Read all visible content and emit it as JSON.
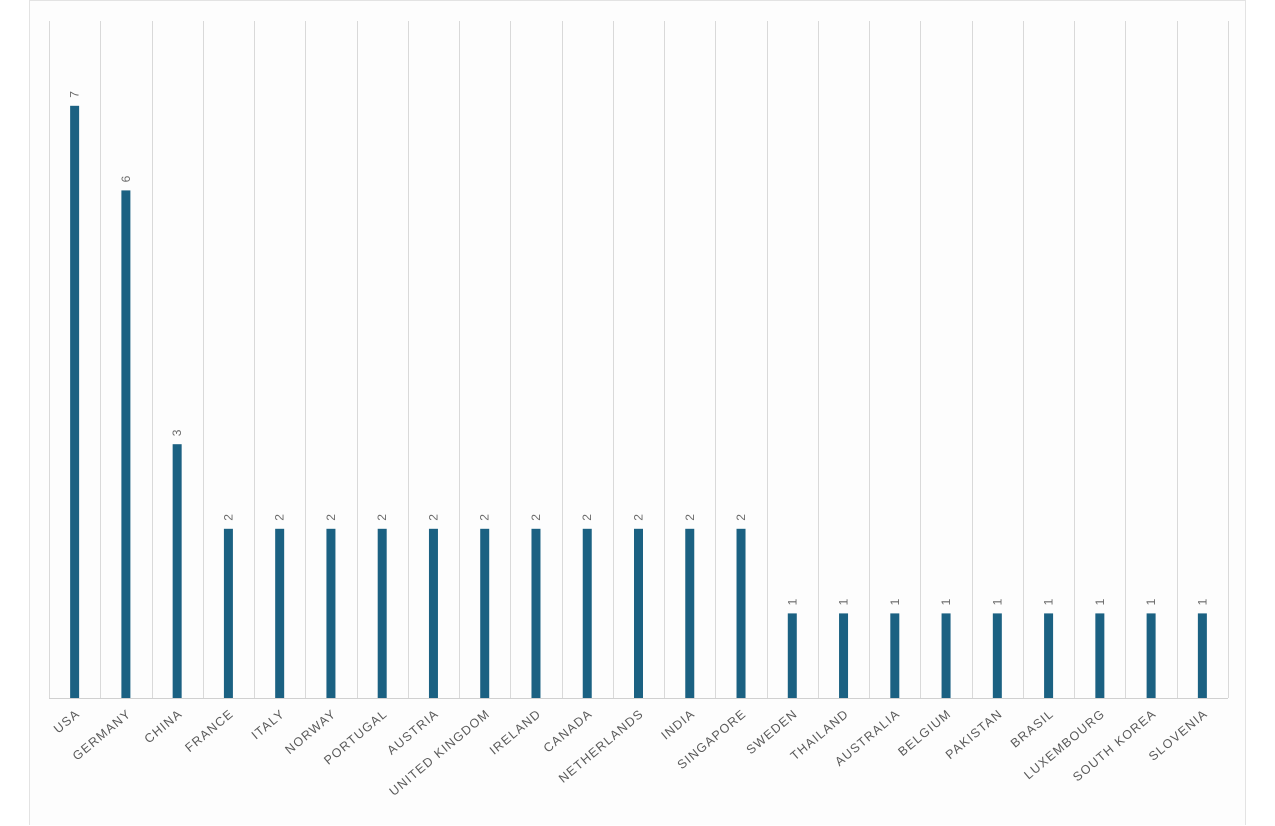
{
  "chart_data": {
    "type": "bar",
    "categories": [
      "USA",
      "GERMANY",
      "CHINA",
      "FRANCE",
      "ITALY",
      "NORWAY",
      "PORTUGAL",
      "AUSTRIA",
      "UNITED KINGDOM",
      "IRELAND",
      "CANADA",
      "NETHERLANDS",
      "INDIA",
      "SINGAPORE",
      "SWEDEN",
      "THAILAND",
      "AUSTRALIA",
      "BELGIUM",
      "PAKISTAN",
      "BRASIL",
      "LUXEMBOURG",
      "SOUTH KOREA",
      "SLOVENIA"
    ],
    "values": [
      7,
      6,
      3,
      2,
      2,
      2,
      2,
      2,
      2,
      2,
      2,
      2,
      2,
      2,
      1,
      1,
      1,
      1,
      1,
      1,
      1,
      1,
      1
    ],
    "ylim": [
      0,
      7
    ],
    "grid": true,
    "data_labels": true,
    "colors": {
      "bar": "#1b6182",
      "grid": "#d9d9d9",
      "label": "#595959"
    }
  }
}
